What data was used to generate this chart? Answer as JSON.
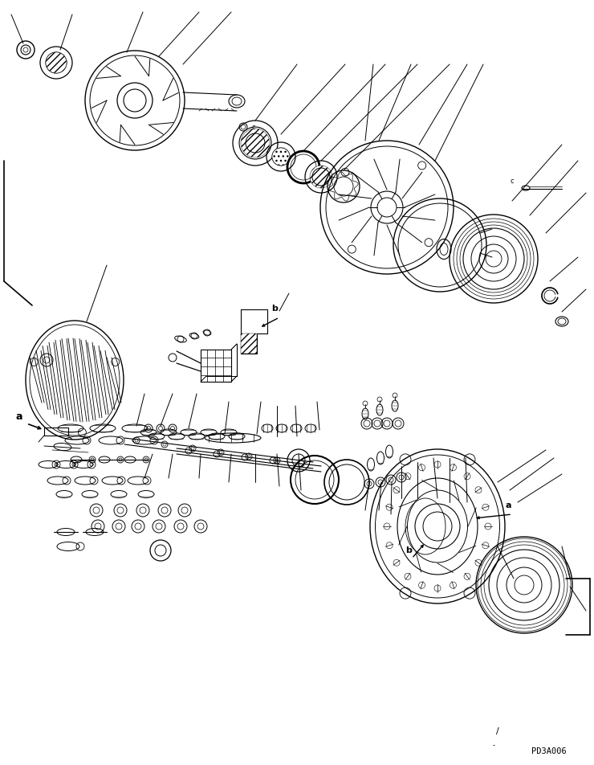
{
  "bg_color": "#ffffff",
  "line_color": "#000000",
  "fig_width": 7.4,
  "fig_height": 9.52,
  "dpi": 100,
  "watermark": "PD3A006",
  "label_a": "a",
  "label_b": "b",
  "label_c": "c"
}
